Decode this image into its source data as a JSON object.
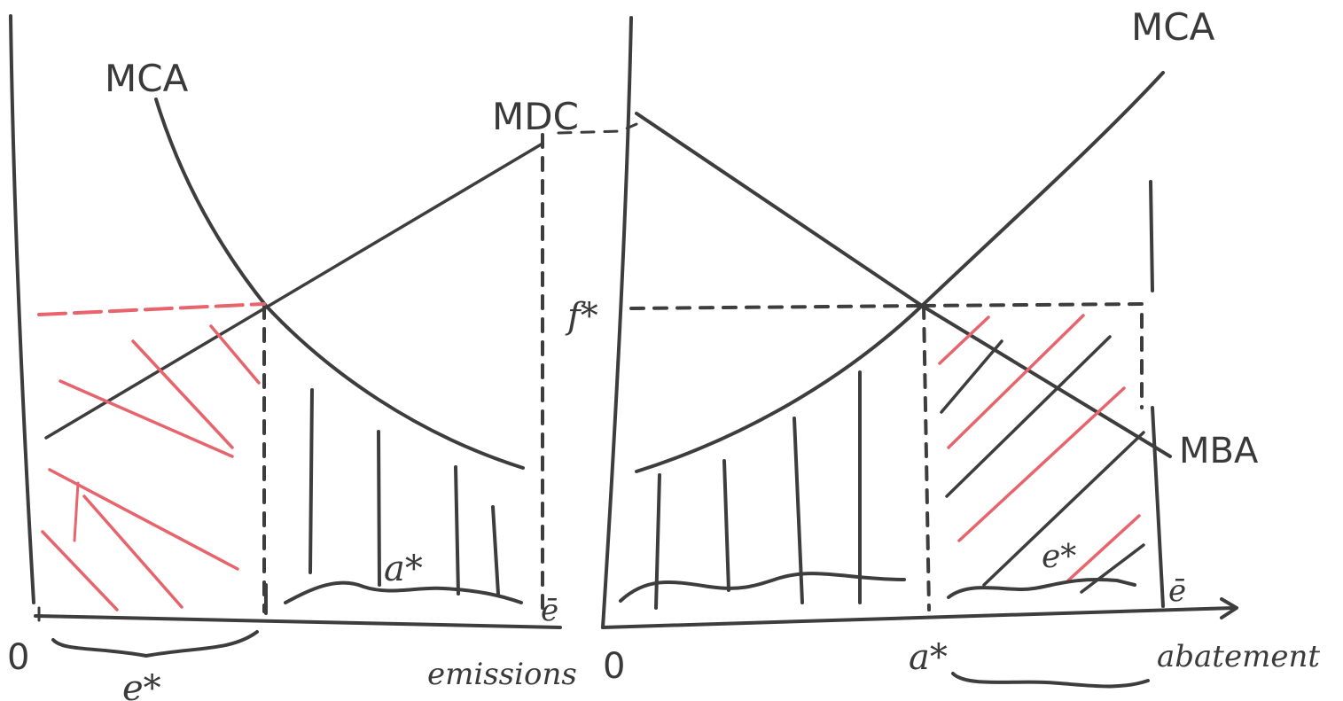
{
  "left_panel": {
    "curve_mca": "MCA",
    "curve_mdc": "MDC",
    "origin": "0",
    "emissions_label": "emissions",
    "e_star": "e*",
    "a_star": "a*",
    "e_bar": "ē"
  },
  "right_panel": {
    "curve_mca": "MCA",
    "curve_mba": "MBA",
    "origin": "0",
    "abatement_label": "abatement",
    "a_star": "a*",
    "e_star": "e*",
    "f_star": "f*",
    "e_bar": "ē"
  },
  "colors": {
    "ink": "#3d3d3d",
    "highlight": "#e8646d"
  }
}
